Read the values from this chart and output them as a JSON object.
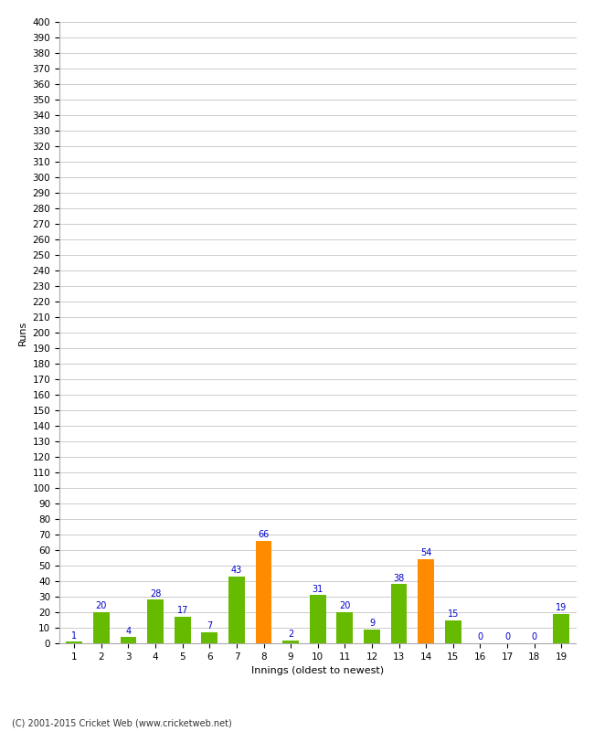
{
  "title": "",
  "xlabel": "Innings (oldest to newest)",
  "ylabel": "Runs",
  "categories": [
    1,
    2,
    3,
    4,
    5,
    6,
    7,
    8,
    9,
    10,
    11,
    12,
    13,
    14,
    15,
    16,
    17,
    18,
    19
  ],
  "values": [
    1,
    20,
    4,
    28,
    17,
    7,
    43,
    66,
    2,
    31,
    20,
    9,
    38,
    54,
    15,
    0,
    0,
    0,
    19
  ],
  "bar_colors": [
    "#66bb00",
    "#66bb00",
    "#66bb00",
    "#66bb00",
    "#66bb00",
    "#66bb00",
    "#66bb00",
    "#ff8c00",
    "#66bb00",
    "#66bb00",
    "#66bb00",
    "#66bb00",
    "#66bb00",
    "#ff8c00",
    "#66bb00",
    "#66bb00",
    "#66bb00",
    "#66bb00",
    "#66bb00"
  ],
  "ylim": [
    0,
    400
  ],
  "ytick_step": 10,
  "label_color": "#0000cc",
  "label_fontsize": 7,
  "axis_label_fontsize": 8,
  "tick_fontsize": 7.5,
  "background_color": "#ffffff",
  "grid_color": "#cccccc",
  "footer": "(C) 2001-2015 Cricket Web (www.cricketweb.net)"
}
